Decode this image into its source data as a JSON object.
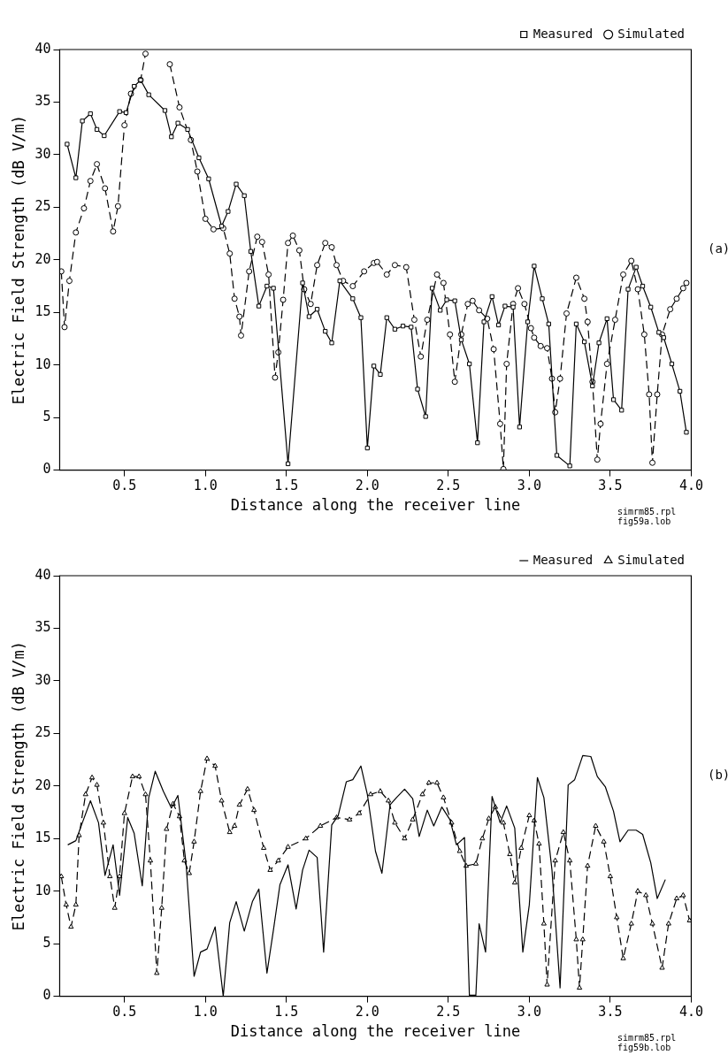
{
  "chart_data": [
    {
      "type": "line",
      "xlabel": "Distance along the receiver line",
      "ylabel": "Electric Field Strength (dB V/m)",
      "xlim": [
        0.1,
        4.0
      ],
      "ylim": [
        0,
        40
      ],
      "xticks": [
        0.5,
        {
          "value": 1,
          "label": "1.0"
        },
        1.5,
        {
          "value": 2,
          "label": "2.0"
        },
        2.5,
        {
          "value": 3,
          "label": "3.0"
        },
        3.5,
        {
          "value": 4,
          "label": "4.0"
        }
      ],
      "yticks": [
        0,
        5,
        10,
        15,
        20,
        25,
        30,
        35,
        40
      ],
      "grid": false,
      "legend": "top right",
      "annotations": [
        "(a)",
        "simrm85.rpl",
        "fig59a.lob"
      ],
      "series": [
        {
          "name": "Measured",
          "color": "#000000",
          "marker": "square",
          "line_style": "solid",
          "x": [
            0.146,
            0.2,
            0.24,
            0.29,
            0.33,
            0.375,
            0.47,
            0.51,
            0.56,
            0.6,
            0.65,
            0.75,
            0.79,
            0.83,
            0.89,
            0.96,
            1.02,
            1.1,
            1.14,
            1.19,
            1.24,
            1.28,
            1.33,
            1.38,
            1.42,
            1.51,
            1.6,
            1.64,
            1.69,
            1.74,
            1.78,
            1.83,
            1.91,
            1.96,
            2.0,
            2.04,
            2.08,
            2.12,
            2.17,
            2.22,
            2.27,
            2.31,
            2.36,
            2.4,
            2.45,
            2.49,
            2.54,
            2.58,
            2.63,
            2.68,
            2.72,
            2.77,
            2.81,
            2.85,
            2.9,
            2.94,
            2.99,
            3.03,
            3.08,
            3.12,
            3.17,
            3.25,
            3.29,
            3.34,
            3.39,
            3.43,
            3.48,
            3.52,
            3.57,
            3.61,
            3.66,
            3.7,
            3.75,
            3.8,
            3.83,
            3.88,
            3.93,
            3.97
          ],
          "values": [
            31.0,
            27.8,
            33.2,
            33.9,
            32.4,
            31.8,
            34.1,
            34.0,
            36.5,
            37.1,
            35.7,
            34.2,
            31.7,
            33.0,
            32.4,
            29.7,
            27.7,
            23.2,
            24.6,
            27.2,
            26.1,
            20.8,
            15.6,
            17.5,
            17.3,
            0.6,
            17.8,
            14.6,
            15.3,
            13.2,
            12.1,
            18.0,
            16.3,
            14.5,
            2.1,
            9.9,
            9.1,
            14.5,
            13.4,
            13.7,
            13.6,
            7.7,
            5.1,
            17.3,
            15.2,
            16.2,
            16.1,
            12.4,
            10.1,
            2.6,
            14.1,
            16.5,
            13.8,
            15.6,
            15.5,
            4.1,
            14.1,
            19.4,
            16.3,
            13.9,
            1.4,
            0.4,
            13.9,
            12.2,
            8.0,
            12.1,
            14.4,
            6.7,
            5.7,
            17.2,
            19.3,
            17.5,
            15.5,
            13.1,
            12.6,
            10.1,
            7.5,
            3.6
          ]
        },
        {
          "name": "Simulated",
          "color": "#000000",
          "marker": "circle",
          "line_style": "dashed",
          "x": [
            0.11,
            0.13,
            0.16,
            0.2,
            0.25,
            0.29,
            0.33,
            0.38,
            0.43,
            0.46,
            0.5,
            0.54,
            0.6,
            0.63,
            0.7,
            0.78,
            0.84,
            0.91,
            0.95,
            1.0,
            1.05,
            1.11,
            1.15,
            1.18,
            1.21,
            1.22,
            1.27,
            1.32,
            1.35,
            1.39,
            1.43,
            1.45,
            1.48,
            1.51,
            1.54,
            1.58,
            1.61,
            1.65,
            1.69,
            1.74,
            1.78,
            1.81,
            1.85,
            1.91,
            1.98,
            2.04,
            2.06,
            2.12,
            2.17,
            2.24,
            2.29,
            2.33,
            2.37,
            2.43,
            2.47,
            2.51,
            2.54,
            2.58,
            2.62,
            2.65,
            2.69,
            2.74,
            2.78,
            2.82,
            2.84,
            2.86,
            2.9,
            2.93,
            2.97,
            3.01,
            3.03,
            3.07,
            3.11,
            3.14,
            3.16,
            3.19,
            3.23,
            3.29,
            3.34,
            3.36,
            3.39,
            3.42,
            3.44,
            3.48,
            3.53,
            3.58,
            3.63,
            3.67,
            3.71,
            3.74,
            3.76,
            3.79,
            3.82,
            3.87,
            3.91,
            3.95,
            3.97
          ],
          "values": [
            18.9,
            13.6,
            18.0,
            22.6,
            24.9,
            27.5,
            29.1,
            26.8,
            22.7,
            25.1,
            32.8,
            35.8,
            37.1,
            39.6,
            null,
            38.6,
            34.5,
            31.4,
            28.4,
            23.9,
            22.9,
            23.0,
            20.6,
            16.3,
            14.6,
            12.8,
            18.9,
            22.2,
            21.7,
            18.6,
            8.8,
            11.2,
            16.2,
            21.6,
            22.3,
            20.9,
            17.2,
            15.8,
            19.5,
            21.6,
            21.2,
            19.5,
            18.0,
            17.5,
            18.9,
            19.7,
            19.8,
            18.6,
            19.5,
            19.3,
            14.3,
            10.8,
            14.3,
            18.6,
            17.8,
            12.9,
            8.4,
            12.9,
            15.8,
            16.1,
            15.2,
            14.4,
            11.5,
            4.4,
            0.1,
            10.1,
            15.8,
            17.3,
            15.8,
            13.5,
            12.6,
            11.8,
            11.6,
            8.7,
            5.5,
            8.7,
            14.9,
            18.3,
            16.3,
            14.1,
            8.4,
            1.0,
            4.4,
            10.1,
            14.3,
            18.6,
            19.9,
            17.2,
            12.9,
            7.2,
            0.7,
            7.2,
            12.9,
            15.3,
            16.3,
            17.3,
            17.8
          ]
        }
      ]
    },
    {
      "type": "line",
      "xlabel": "Distance along the receiver line",
      "ylabel": "Electric Field Strength (dB V/m)",
      "xlim": [
        0.1,
        4.0
      ],
      "ylim": [
        0,
        40
      ],
      "xticks": [
        0.5,
        {
          "value": 1,
          "label": "1.0"
        },
        1.5,
        {
          "value": 2,
          "label": "2.0"
        },
        2.5,
        {
          "value": 3,
          "label": "3.0"
        },
        3.5,
        {
          "value": 4,
          "label": "4.0"
        }
      ],
      "yticks": [
        0,
        5,
        10,
        15,
        20,
        25,
        30,
        35,
        40
      ],
      "grid": false,
      "legend": "top right",
      "annotations": [
        "(b)",
        "simrm85.rpl",
        "fig59b.lob"
      ],
      "series": [
        {
          "name": "Measured",
          "color": "#000000",
          "marker": "none",
          "line_style": "solid",
          "x": [
            0.15,
            0.2,
            0.24,
            0.29,
            0.34,
            0.38,
            0.43,
            0.47,
            0.52,
            0.56,
            0.61,
            0.65,
            0.69,
            0.74,
            0.79,
            0.83,
            0.88,
            0.93,
            0.97,
            1.01,
            1.06,
            1.11,
            1.15,
            1.19,
            1.24,
            1.29,
            1.33,
            1.38,
            1.42,
            1.46,
            1.51,
            1.56,
            1.6,
            1.64,
            1.69,
            1.73,
            1.78,
            1.82,
            1.87,
            1.91,
            1.96,
            2.0,
            2.05,
            2.09,
            2.14,
            2.18,
            2.23,
            2.28,
            2.32,
            2.37,
            2.41,
            2.46,
            2.51,
            2.55,
            2.6,
            2.63,
            2.67,
            2.69,
            2.73,
            2.77,
            2.82,
            2.86,
            2.91,
            2.96,
            3.0,
            3.05,
            3.09,
            3.14,
            3.19,
            3.24,
            3.28,
            3.33,
            3.38,
            3.42,
            3.47,
            3.52,
            3.56,
            3.61,
            3.66,
            3.7,
            3.75,
            3.79,
            3.84
          ],
          "values": [
            14.4,
            14.8,
            16.5,
            18.6,
            16.5,
            11.5,
            14.4,
            9.6,
            17.0,
            15.5,
            10.5,
            18.9,
            21.4,
            19.5,
            17.9,
            19.1,
            12.7,
            1.9,
            4.2,
            4.5,
            6.6,
            0,
            7.0,
            9.0,
            6.2,
            9.0,
            10.2,
            2.2,
            6.3,
            10.6,
            12.5,
            8.3,
            12.0,
            13.9,
            13.2,
            4.2,
            16.3,
            17.2,
            20.4,
            20.6,
            21.9,
            19.2,
            13.8,
            11.7,
            18.2,
            18.9,
            19.7,
            18.8,
            15.2,
            17.7,
            16.2,
            18.0,
            16.8,
            14.4,
            15.1,
            0.1,
            0.1,
            6.9,
            4.2,
            19.0,
            16.5,
            18.1,
            16.0,
            4.2,
            8.7,
            20.8,
            18.9,
            12.0,
            0.8,
            20.1,
            20.6,
            22.9,
            22.8,
            20.9,
            19.9,
            17.6,
            14.7,
            15.8,
            15.8,
            15.4,
            12.7,
            9.3,
            11.1
          ]
        },
        {
          "name": "Simulated",
          "color": "#000000",
          "marker": "triangle",
          "line_style": "dashed",
          "x": [
            0.11,
            0.14,
            0.17,
            0.2,
            0.22,
            0.26,
            0.3,
            0.33,
            0.37,
            0.41,
            0.44,
            0.47,
            0.5,
            0.55,
            0.59,
            0.63,
            0.66,
            0.7,
            0.73,
            0.76,
            0.8,
            0.84,
            0.87,
            0.9,
            0.93,
            0.97,
            1.01,
            1.06,
            1.1,
            1.15,
            1.18,
            1.21,
            1.26,
            1.3,
            1.36,
            1.4,
            1.45,
            1.51,
            1.62,
            1.71,
            1.81,
            1.89,
            1.95,
            2.02,
            2.08,
            2.13,
            2.17,
            2.23,
            2.28,
            2.34,
            2.38,
            2.43,
            2.47,
            2.52,
            2.57,
            2.61,
            2.67,
            2.71,
            2.75,
            2.79,
            2.84,
            2.88,
            2.91,
            2.95,
            3.0,
            3.03,
            3.06,
            3.09,
            3.11,
            3.16,
            3.21,
            3.25,
            3.29,
            3.31,
            3.33,
            3.36,
            3.41,
            3.46,
            3.5,
            3.54,
            3.58,
            3.63,
            3.67,
            3.72,
            3.76,
            3.82,
            3.86,
            3.91,
            3.95,
            3.99
          ],
          "values": [
            11.4,
            8.7,
            6.6,
            8.7,
            15.3,
            19.2,
            20.8,
            20.1,
            16.5,
            11.4,
            8.4,
            11.4,
            17.4,
            20.9,
            20.9,
            19.2,
            12.9,
            2.2,
            8.4,
            15.9,
            18.3,
            17.1,
            12.9,
            11.7,
            14.7,
            19.5,
            22.6,
            21.9,
            18.6,
            15.6,
            16.2,
            18.2,
            19.7,
            17.7,
            14.1,
            12.0,
            12.9,
            14.2,
            15.0,
            16.2,
            17.0,
            16.8,
            17.4,
            19.2,
            19.5,
            18.6,
            16.5,
            15.0,
            16.8,
            19.2,
            20.3,
            20.3,
            18.9,
            16.5,
            13.8,
            12.4,
            12.6,
            15.0,
            16.9,
            18.0,
            16.5,
            13.5,
            10.8,
            14.1,
            17.2,
            16.7,
            14.5,
            6.9,
            1.1,
            12.9,
            15.6,
            12.9,
            5.4,
            0.8,
            5.4,
            12.4,
            16.2,
            14.7,
            11.4,
            7.5,
            3.6,
            6.9,
            10.0,
            9.6,
            6.9,
            2.7,
            6.9,
            9.3,
            9.6,
            7.2
          ]
        }
      ]
    }
  ]
}
